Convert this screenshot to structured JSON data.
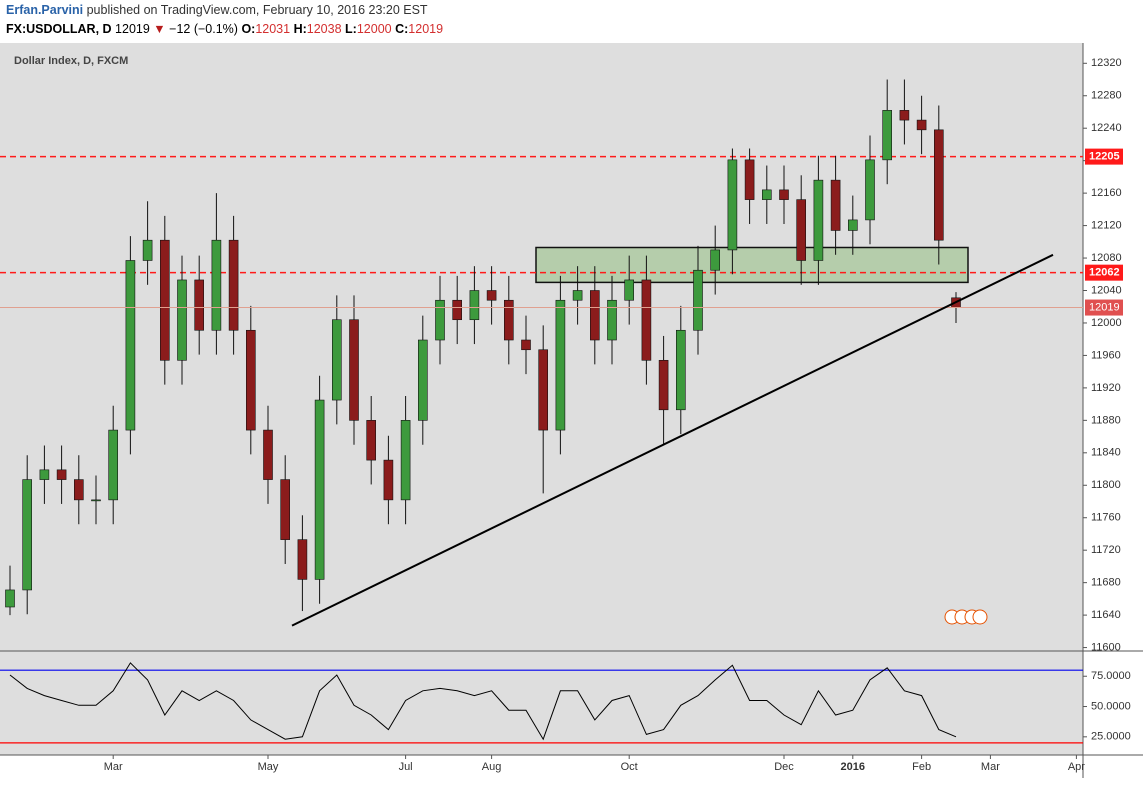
{
  "header": {
    "author": "Erfan.Parvini",
    "published": "published on TradingView.com, February 10, 2016 23:20 EST",
    "symbol": "FX:USDOLLAR, D",
    "last": "12019",
    "arrow": "▼",
    "change": "−12 (−0.1%)",
    "o_label": "O:",
    "open": "12031",
    "h_label": "H:",
    "high": "12038",
    "l_label": "L:",
    "low": "12000",
    "c_label": "C:",
    "close": "12019"
  },
  "chart_data": [
    {
      "type": "candlestick",
      "title": "Dollar Index, D, FXCM",
      "categories": [
        null,
        null,
        null,
        null,
        null,
        null,
        "Mar",
        null,
        null,
        null,
        null,
        null,
        null,
        null,
        null,
        "May",
        null,
        null,
        null,
        null,
        null,
        null,
        null,
        "Jul",
        null,
        null,
        null,
        null,
        "Aug",
        null,
        null,
        null,
        null,
        null,
        null,
        null,
        "Oct",
        null,
        null,
        null,
        null,
        null,
        null,
        null,
        null,
        "Dec",
        null,
        null,
        null,
        "2016",
        null,
        null,
        null,
        "Feb",
        null,
        null,
        null,
        "Mar",
        null,
        null,
        null,
        null,
        "Apr"
      ],
      "open": [
        11650,
        11671,
        11807,
        11819,
        11807,
        11782,
        11782,
        11868,
        12077,
        12102,
        11954,
        12053,
        11991,
        12102,
        11991,
        11868,
        11807,
        11733,
        11684,
        11905,
        12004,
        11880,
        11831,
        11782,
        11880,
        11979,
        12028,
        12004,
        12040,
        12028,
        11979,
        11967,
        11868,
        12028,
        12040,
        11979,
        12028,
        12053,
        11954,
        11893,
        11991,
        12065,
        12090,
        12201,
        12152,
        12164,
        12152,
        12077,
        12176,
        12114,
        12127,
        12201,
        12262,
        12250,
        12238,
        12031,
        null,
        null,
        null,
        null,
        null,
        null,
        null
      ],
      "high": [
        11701,
        11837,
        11849,
        11849,
        11837,
        11812,
        11898,
        12107,
        12150,
        12132,
        12083,
        12083,
        12160,
        12132,
        12021,
        11898,
        11837,
        11763,
        11935,
        12034,
        12034,
        11910,
        11861,
        11910,
        12009,
        12058,
        12058,
        12070,
        12070,
        12058,
        12009,
        11997,
        12058,
        12070,
        12070,
        12058,
        12083,
        12083,
        11984,
        12021,
        12095,
        12120,
        12215,
        12215,
        12194,
        12194,
        12182,
        12206,
        12206,
        12157,
        12231,
        12300,
        12300,
        12280,
        12268,
        12038,
        null,
        null,
        null,
        null,
        null,
        null,
        null
      ],
      "low": [
        11640,
        11641,
        11777,
        11777,
        11752,
        11752,
        11752,
        11838,
        12047,
        11924,
        11924,
        11961,
        11961,
        11961,
        11838,
        11777,
        11703,
        11645,
        11654,
        11875,
        11850,
        11801,
        11752,
        11752,
        11850,
        11949,
        11974,
        11974,
        11998,
        11949,
        11937,
        11790,
        11838,
        11998,
        11949,
        11949,
        11998,
        11924,
        11850,
        11863,
        11961,
        12035,
        12060,
        12122,
        12122,
        12122,
        12047,
        12047,
        12084,
        12084,
        12097,
        12171,
        12220,
        12208,
        12072,
        12000,
        null,
        null,
        null,
        null,
        null,
        null,
        null
      ],
      "close": [
        11671,
        11807,
        11819,
        11807,
        11782,
        11782,
        11868,
        12077,
        12102,
        11954,
        12053,
        11991,
        12102,
        11991,
        11868,
        11807,
        11733,
        11684,
        11905,
        12004,
        11880,
        11831,
        11782,
        11880,
        11979,
        12028,
        12004,
        12040,
        12028,
        11979,
        11967,
        11868,
        12028,
        12040,
        11979,
        12028,
        12053,
        11954,
        11893,
        11991,
        12065,
        12090,
        12201,
        12152,
        12164,
        12152,
        12077,
        12176,
        12114,
        12127,
        12201,
        12262,
        12250,
        12238,
        12102,
        12019,
        null,
        null,
        null,
        null,
        null,
        null,
        null
      ],
      "up_color": "#3d9a3d",
      "down_color": "#8b1c1c",
      "ylim": [
        11597,
        12345
      ],
      "yticks": [
        11600,
        11640,
        11680,
        11720,
        11760,
        11800,
        11840,
        11880,
        11920,
        11960,
        12000,
        12040,
        12080,
        12120,
        12160,
        12200,
        12240,
        12280,
        12320
      ],
      "hlines": [
        {
          "value": 12205,
          "color": "#ff1a1a"
        },
        {
          "value": 12062,
          "color": "#ff1a1a"
        }
      ],
      "zone": {
        "from": 12050,
        "to": 12093,
        "color": "#a7c79a"
      },
      "trendline": [
        11627,
        12084
      ]
    },
    {
      "type": "line",
      "values": [
        76,
        65,
        59,
        55,
        51,
        51,
        63,
        86,
        72,
        43,
        63,
        55,
        63,
        55,
        39,
        31,
        23,
        25,
        63,
        76,
        51,
        43,
        31,
        55,
        63,
        65,
        63,
        59,
        63,
        47,
        47,
        23,
        63,
        63,
        39,
        55,
        59,
        27,
        31,
        51,
        59,
        72,
        84,
        55,
        55,
        43,
        35,
        63,
        43,
        47,
        72,
        82,
        63,
        59,
        31,
        25,
        null,
        null,
        null,
        null,
        null,
        null,
        null
      ],
      "color": "#000000",
      "ylim": [
        10,
        95
      ],
      "yticks": [
        {
          "value": 25,
          "label": "25.0000"
        },
        {
          "value": 50,
          "label": "50.0000"
        },
        {
          "value": 75,
          "label": "75.0000"
        }
      ],
      "hlines": [
        {
          "value": 80,
          "color": "#0000ee"
        },
        {
          "value": 20,
          "color": "#ff0000"
        }
      ]
    }
  ]
}
